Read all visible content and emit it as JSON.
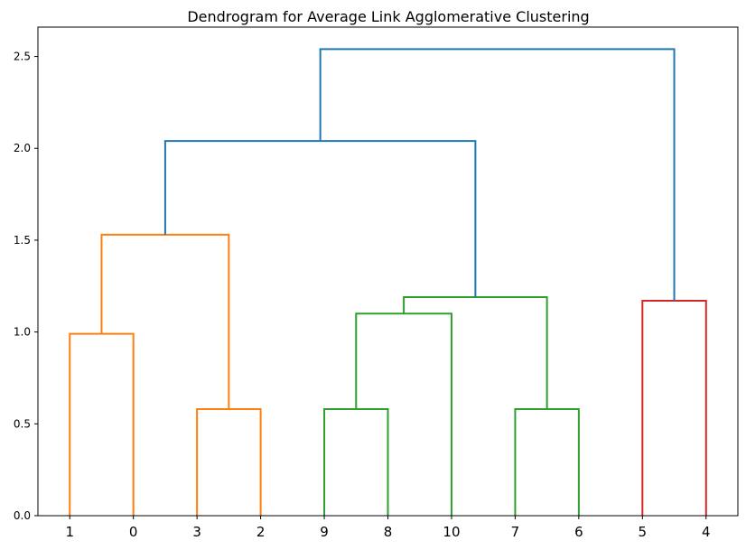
{
  "chart_data": {
    "type": "dendrogram",
    "title": "Dendrogram for Average Link Agglomerative Clustering",
    "xlabel": "",
    "ylabel": "",
    "leaf_order": [
      "1",
      "0",
      "3",
      "2",
      "9",
      "8",
      "10",
      "7",
      "6",
      "5",
      "4"
    ],
    "ylim": [
      0,
      2.66
    ],
    "y_ticks": [
      0.0,
      0.5,
      1.0,
      1.5,
      2.0,
      2.5
    ],
    "y_tick_labels": [
      "0.0",
      "0.5",
      "1.0",
      "1.5",
      "2.0",
      "2.5"
    ],
    "grid": false,
    "colors": {
      "orange": "#ff7f0e",
      "green": "#2ca02c",
      "red": "#d62728",
      "blue": "#1f77b4"
    },
    "merges": [
      {
        "id": "m1",
        "left": "1",
        "right": "0",
        "height": 0.99,
        "color": "orange"
      },
      {
        "id": "m2",
        "left": "3",
        "right": "2",
        "height": 0.58,
        "color": "orange"
      },
      {
        "id": "m3",
        "left": "m1",
        "right": "m2",
        "height": 1.53,
        "color": "orange"
      },
      {
        "id": "m4",
        "left": "9",
        "right": "8",
        "height": 0.58,
        "color": "green"
      },
      {
        "id": "m5",
        "left": "m4",
        "right": "10",
        "height": 1.1,
        "color": "green"
      },
      {
        "id": "m6",
        "left": "7",
        "right": "6",
        "height": 0.58,
        "color": "green"
      },
      {
        "id": "m7",
        "left": "m5",
        "right": "m6",
        "height": 1.19,
        "color": "green"
      },
      {
        "id": "m8",
        "left": "5",
        "right": "4",
        "height": 1.17,
        "color": "red"
      },
      {
        "id": "m9",
        "left": "m3",
        "right": "m7",
        "height": 2.04,
        "color": "blue"
      },
      {
        "id": "m10",
        "left": "m9",
        "right": "m8",
        "height": 2.54,
        "color": "blue"
      }
    ]
  }
}
